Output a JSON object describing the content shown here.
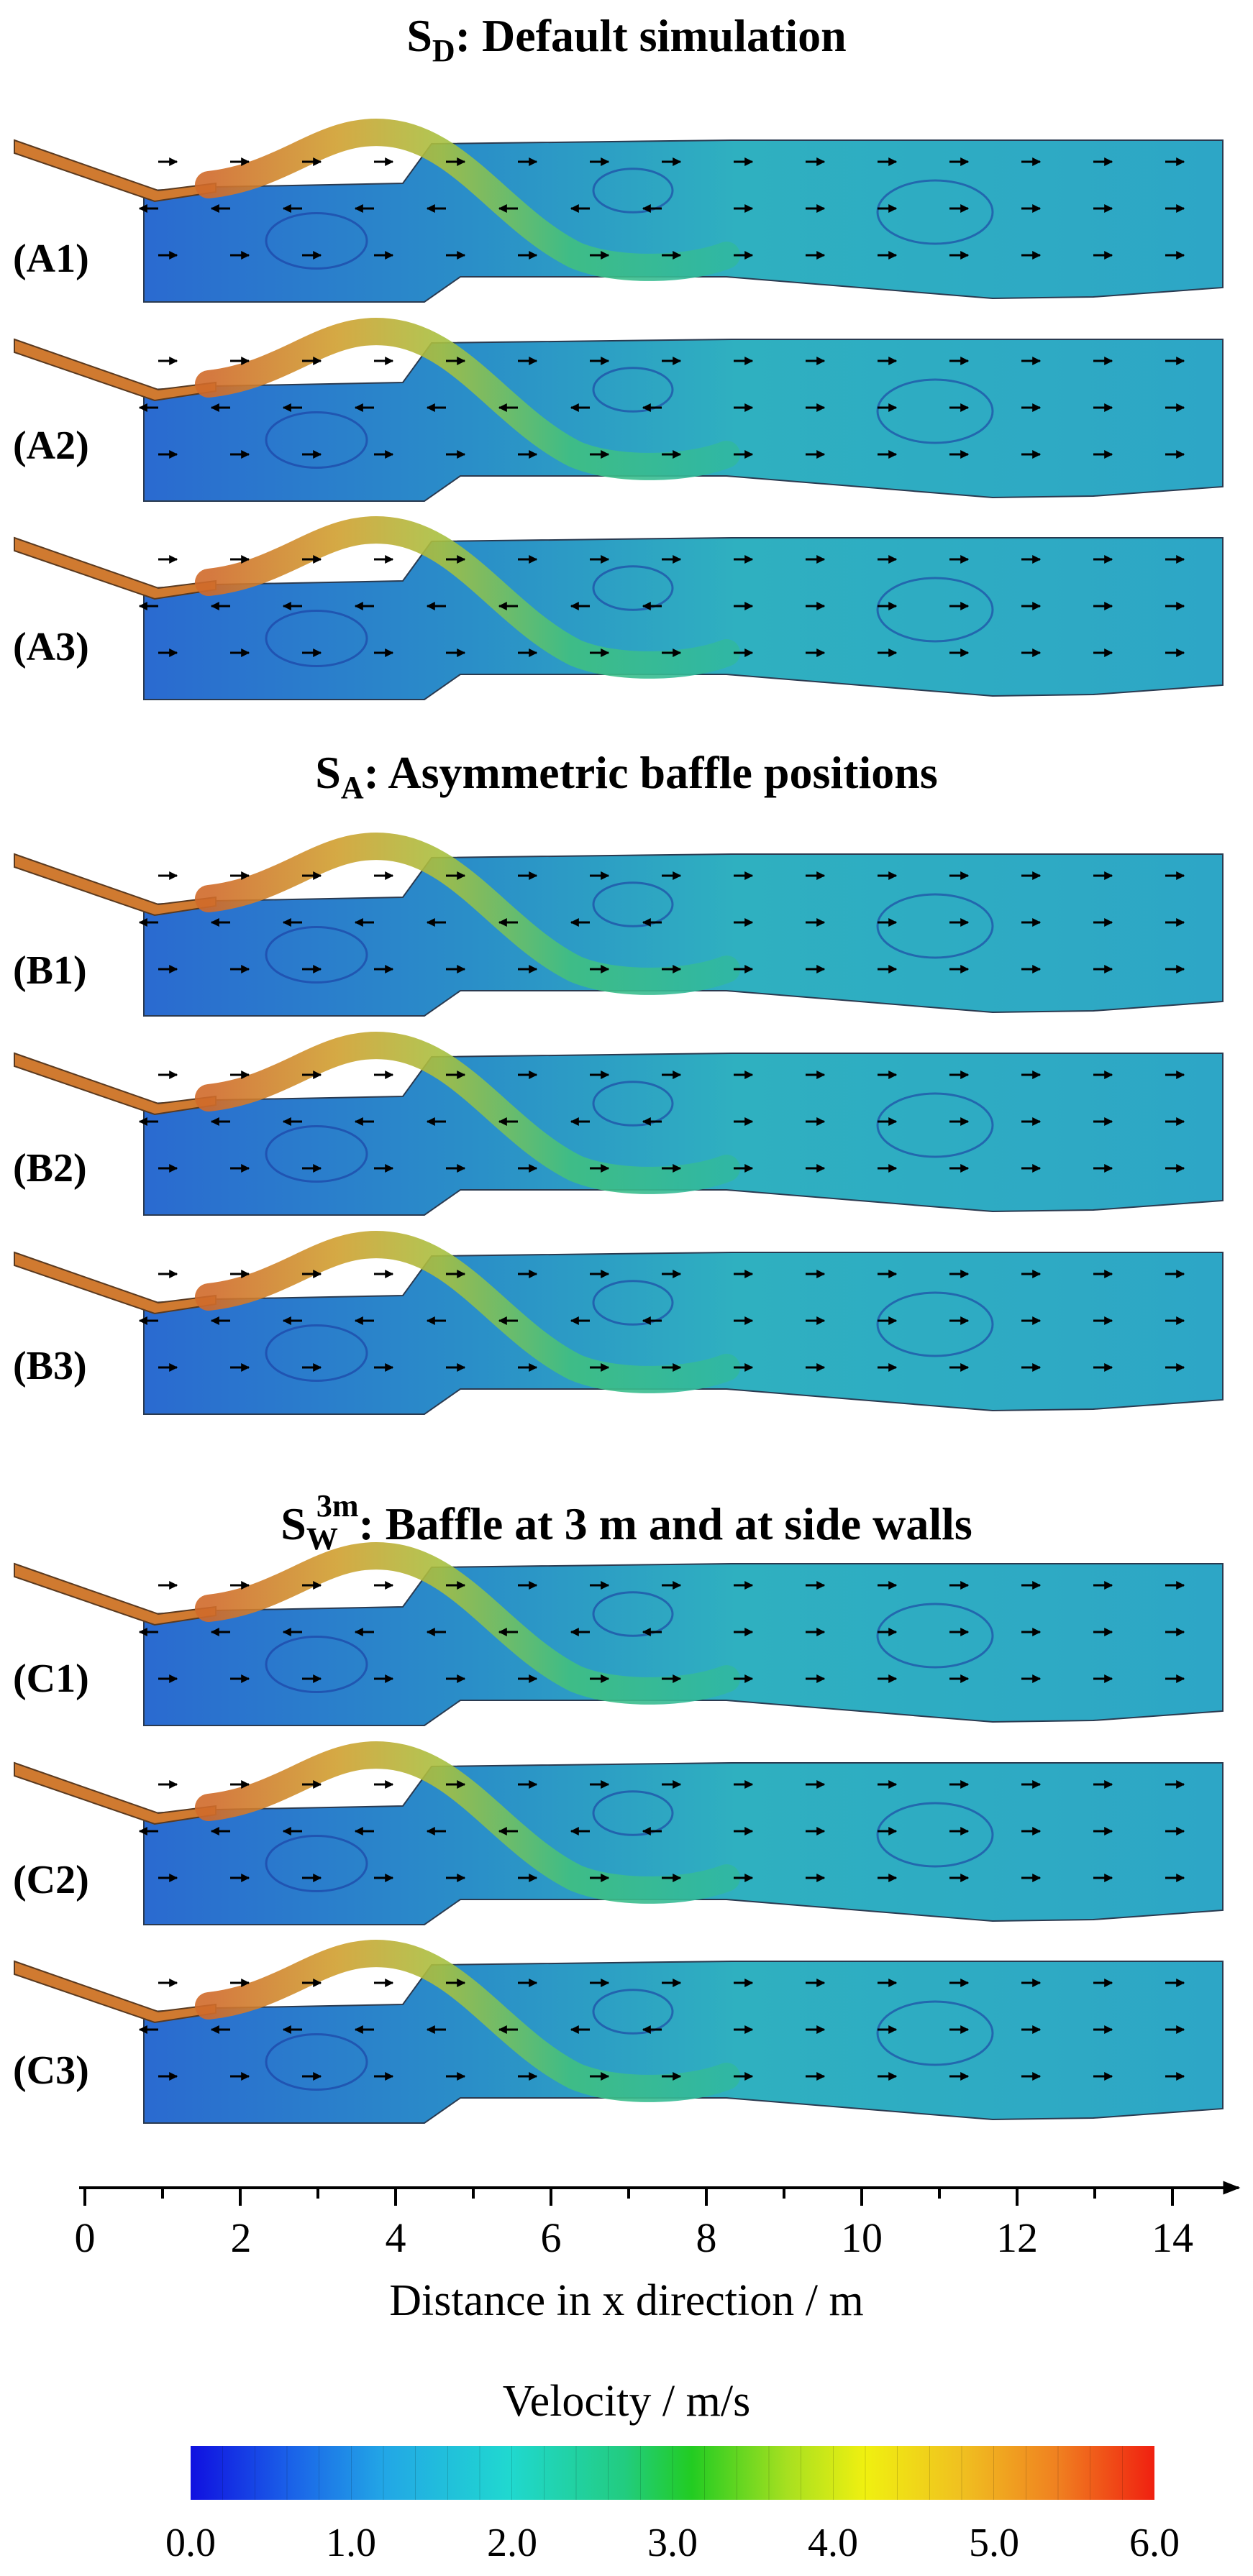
{
  "sections": [
    {
      "base": "S",
      "sub": "D",
      "sup": "",
      "rest": ": Default simulation"
    },
    {
      "base": "S",
      "sub": "A",
      "sup": "",
      "rest": ": Asymmetric baffle positions"
    },
    {
      "base": "S",
      "sub": "W",
      "sup": "3m",
      "rest": ": Baffle at 3 m and at side walls"
    }
  ],
  "panels": [
    "(A1)",
    "(A2)",
    "(A3)",
    "(B1)",
    "(B2)",
    "(B3)",
    "(C1)",
    "(C2)",
    "(C3)"
  ],
  "x_axis": {
    "label": "Distance in x direction / m",
    "ticks": [
      "0",
      "2",
      "4",
      "6",
      "8",
      "10",
      "12",
      "14"
    ]
  },
  "colorbar": {
    "title": "Velocity / m/s",
    "labels": [
      "0.0",
      "1.0",
      "2.0",
      "3.0",
      "4.0",
      "5.0",
      "6.0"
    ],
    "range": [
      0,
      6
    ],
    "colors": [
      "#1010e0",
      "#1a5fe8",
      "#22a6e6",
      "#20d8d0",
      "#22cc80",
      "#22cc22",
      "#a8e020",
      "#f0f010",
      "#f0c020",
      "#f08020",
      "#f02010"
    ]
  }
}
